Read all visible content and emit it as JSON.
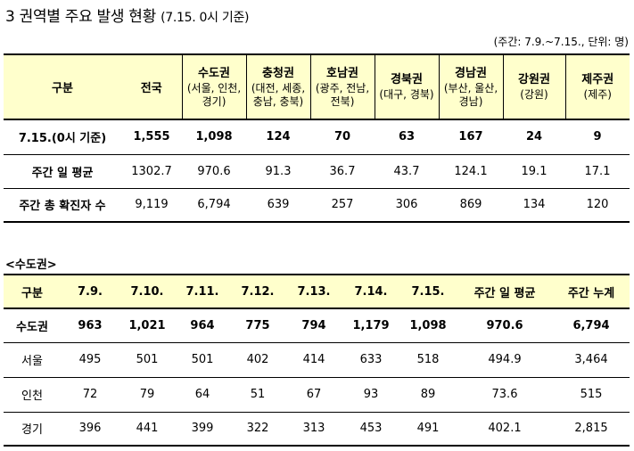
{
  "title": {
    "main": "3 권역별 주요 발생 현황",
    "sub": "(7.15. 0시 기준)"
  },
  "unit_note": "(주간: 7.9.~7.15., 단위: 명)",
  "table1": {
    "header_label": "구분",
    "header_nation": "전국",
    "regions": [
      {
        "name": "수도권",
        "cities": [
          "(서울, 인천,",
          "경기)"
        ]
      },
      {
        "name": "충청권",
        "cities": [
          "(대전, 세종,",
          "충남, 충북)"
        ]
      },
      {
        "name": "호남권",
        "cities": [
          "(광주, 전남,",
          "전북)"
        ]
      },
      {
        "name": "경북권",
        "cities": [
          "(대구, 경북)"
        ]
      },
      {
        "name": "경남권",
        "cities": [
          "(부산, 울산,",
          "경남)"
        ]
      },
      {
        "name": "강원권",
        "cities": [
          "(강원)"
        ]
      },
      {
        "name": "제주권",
        "cities": [
          "(제주)"
        ]
      }
    ],
    "rows": [
      {
        "label": "7.15.(0시 기준)",
        "values": [
          "1,555",
          "1,098",
          "124",
          "70",
          "63",
          "167",
          "24",
          "9"
        ]
      },
      {
        "label": "주간 일 평균",
        "values": [
          "1302.7",
          "970.6",
          "91.3",
          "36.7",
          "43.7",
          "124.1",
          "19.1",
          "17.1"
        ]
      },
      {
        "label": "주간 총 확진자 수",
        "values": [
          "9,119",
          "6,794",
          "639",
          "257",
          "306",
          "869",
          "134",
          "120"
        ]
      }
    ]
  },
  "section2_title": "<수도권>",
  "table2": {
    "headers": [
      "구분",
      "7.9.",
      "7.10.",
      "7.11.",
      "7.12.",
      "7.13.",
      "7.14.",
      "7.15.",
      "주간 일 평균",
      "주간 누계"
    ],
    "rows": [
      {
        "label": "수도권",
        "values": [
          "963",
          "1,021",
          "964",
          "775",
          "794",
          "1,179",
          "1,098",
          "970.6",
          "6,794"
        ]
      },
      {
        "label": "서울",
        "values": [
          "495",
          "501",
          "501",
          "402",
          "414",
          "633",
          "518",
          "494.9",
          "3,464"
        ]
      },
      {
        "label": "인천",
        "values": [
          "72",
          "79",
          "64",
          "51",
          "67",
          "93",
          "89",
          "73.6",
          "515"
        ]
      },
      {
        "label": "경기",
        "values": [
          "396",
          "441",
          "399",
          "322",
          "313",
          "453",
          "491",
          "402.1",
          "2,815"
        ]
      }
    ]
  }
}
